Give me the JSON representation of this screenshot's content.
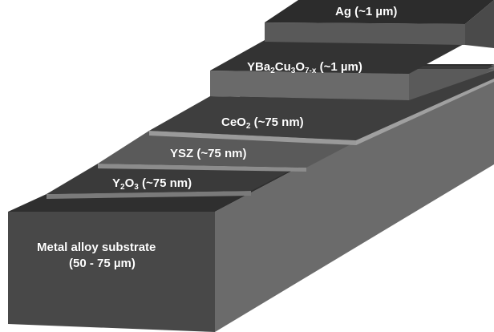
{
  "layers": [
    {
      "id": "ag",
      "name": "Ag",
      "thickness": "(~1 µm)",
      "text": "Ag (~1 µm)"
    },
    {
      "id": "ybco",
      "name": "YBa2Cu3O7-x",
      "thickness": "(~1 µm)"
    },
    {
      "id": "ceo2",
      "name": "CeO2",
      "thickness": "(~75 nm)"
    },
    {
      "id": "ysz",
      "name": "YSZ",
      "thickness": "(~75 nm)",
      "text": "YSZ (~75 nm)"
    },
    {
      "id": "y2o3",
      "name": "Y2O3",
      "thickness": "(~75 nm)"
    },
    {
      "id": "substrate",
      "name": "Metal alloy substrate",
      "thickness": "(50 - 75 µm)"
    }
  ],
  "labels": {
    "ag": "Ag (~1 µm)",
    "ybco_pre": "YBa",
    "ybco_sub1": "2",
    "ybco_mid1": "Cu",
    "ybco_sub2": "3",
    "ybco_mid2": "O",
    "ybco_sub3": "7-x",
    "ybco_post": " (~1 µm)",
    "ceo2_pre": "CeO",
    "ceo2_sub": "2",
    "ceo2_post": " (~75 nm)",
    "ysz": "YSZ (~75 nm)",
    "y2o3_pre": "Y",
    "y2o3_sub1": "2",
    "y2o3_mid": "O",
    "y2o3_sub2": "3",
    "y2o3_post": " (~75 nm)",
    "substrate_line1": "Metal alloy substrate",
    "substrate_line2": "(50 - 75 µm)"
  },
  "colors": {
    "substrate_front": "#4a4a4a",
    "substrate_side": "#6e6e6e",
    "top_dark": "#2e2e2e",
    "top_mid": "#3c3c3c",
    "top_light": "#575757",
    "step_face": "#8a8a8a",
    "background": "#ffffff"
  }
}
